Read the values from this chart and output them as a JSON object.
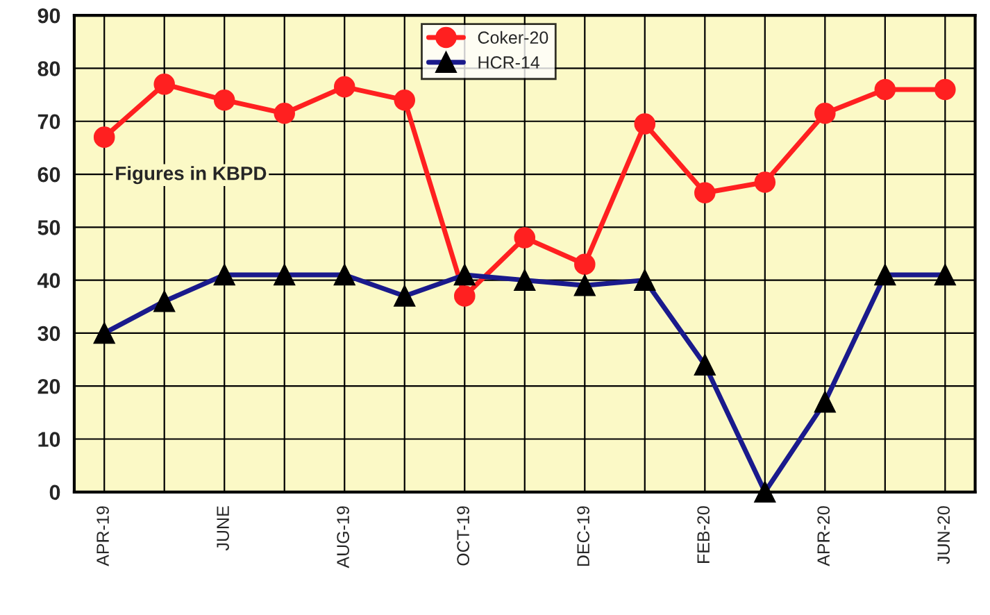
{
  "chart_data": {
    "type": "line",
    "categories": [
      "APR-19",
      null,
      "JUNE",
      null,
      "AUG-19",
      null,
      "OCT-19",
      null,
      "DEC-19",
      null,
      "FEB-20",
      null,
      "APR-20",
      null,
      "JUN-20"
    ],
    "series": [
      {
        "name": "Coker-20",
        "color": "#ff2020",
        "marker": "circle",
        "values": [
          67,
          77,
          74,
          71.5,
          76.5,
          74,
          37,
          48,
          43,
          69.5,
          56.5,
          58.5,
          71.5,
          76,
          76
        ]
      },
      {
        "name": "HCR-14",
        "color": "#1a1a8c",
        "marker": "triangle",
        "values": [
          30,
          36,
          41,
          41,
          41,
          37,
          41,
          40,
          39,
          40,
          24,
          0,
          17,
          41,
          41
        ]
      }
    ],
    "ylim": [
      0,
      90
    ],
    "yticks": [
      0,
      10,
      20,
      30,
      40,
      50,
      60,
      70,
      80,
      90
    ],
    "grid": true,
    "legend": "top",
    "line_style": "solid",
    "annotations": [
      "Figures in KBPD"
    ]
  }
}
